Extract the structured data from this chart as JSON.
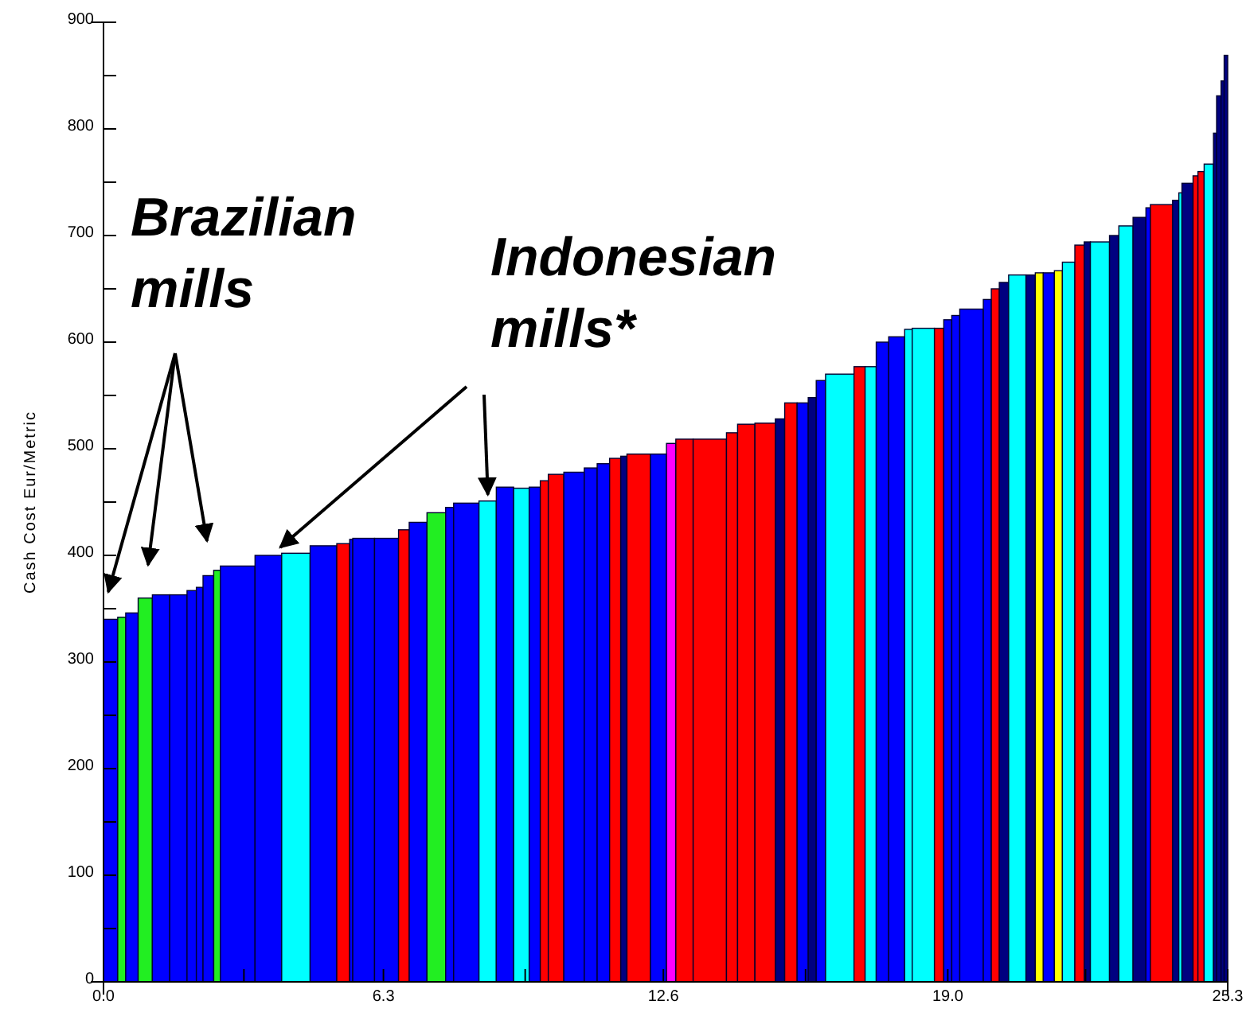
{
  "chart_data": {
    "type": "histogram",
    "ylabel": "Cash Cost Eur/Metric",
    "bins": [
      0.0,
      0.32,
      0.5,
      0.78,
      1.1,
      1.49,
      1.88,
      2.09,
      2.24,
      2.48,
      2.63,
      3.41,
      4.01,
      4.65,
      5.25,
      5.54,
      5.61,
      6.1,
      6.64,
      6.88,
      7.28,
      7.7,
      7.88,
      8.45,
      8.84,
      9.23,
      9.58,
      9.83,
      10.01,
      10.36,
      10.82,
      11.11,
      11.39,
      11.64,
      11.78,
      12.31,
      12.67,
      12.88,
      13.27,
      14.02,
      14.27,
      14.66,
      15.12,
      15.33,
      15.61,
      15.86,
      16.04,
      16.25,
      16.89,
      17.14,
      17.39,
      17.67,
      18.03,
      18.2,
      18.7,
      18.91,
      19.09,
      19.27,
      19.8,
      19.98,
      20.16,
      20.37,
      20.76,
      20.97,
      21.15,
      21.4,
      21.58,
      21.86,
      22.07,
      22.21,
      22.64,
      22.85,
      23.17,
      23.46,
      23.56,
      24.06,
      24.2,
      24.27,
      24.52,
      24.63,
      24.77,
      24.98,
      25.05,
      25.15,
      25.22,
      25.3
    ],
    "values": [
      340,
      342,
      346,
      360,
      363,
      363,
      367,
      370,
      381,
      386,
      390,
      400,
      402,
      409,
      411,
      415,
      416,
      416,
      424,
      431,
      440,
      445,
      449,
      451,
      464,
      463,
      464,
      470,
      476,
      478,
      482,
      486,
      491,
      493,
      495,
      495,
      505,
      509,
      509,
      515,
      523,
      524,
      528,
      543,
      543,
      548,
      564,
      570,
      577,
      577,
      600,
      605,
      612,
      613,
      613,
      621,
      625,
      631,
      640,
      650,
      656,
      663,
      663,
      665,
      665,
      667,
      675,
      691,
      694,
      694,
      700,
      709,
      717,
      726,
      729,
      733,
      740,
      749,
      756,
      760,
      767,
      796,
      831,
      845,
      869
    ],
    "colors": [
      "#0000ff",
      "#22ee22",
      "#0000ff",
      "#22ee22",
      "#0000ff",
      "#0000ff",
      "#0000ff",
      "#0000ff",
      "#0000ff",
      "#22ee22",
      "#0000ff",
      "#0000ff",
      "#00ffff",
      "#0000ff",
      "#ff0000",
      "#0000ff",
      "#0000ff",
      "#0000ff",
      "#ff0000",
      "#0000ff",
      "#22ee22",
      "#0000ff",
      "#0000ff",
      "#00ffff",
      "#0000ff",
      "#00ffff",
      "#0000ff",
      "#ff0000",
      "#ff0000",
      "#0000ff",
      "#0000ff",
      "#0000ff",
      "#ff0000",
      "#000080",
      "#ff0000",
      "#0000ff",
      "#ff00ff",
      "#ff0000",
      "#ff0000",
      "#ff0000",
      "#ff0000",
      "#ff0000",
      "#000080",
      "#ff0000",
      "#0000ff",
      "#000080",
      "#0000ff",
      "#00ffff",
      "#ff0000",
      "#00ffff",
      "#0000ff",
      "#0000ff",
      "#00ffff",
      "#00ffff",
      "#ff0000",
      "#0000ff",
      "#0000ff",
      "#0000ff",
      "#0000ff",
      "#ff0000",
      "#000080",
      "#00ffff",
      "#000080",
      "#ffff00",
      "#0000ff",
      "#ffff00",
      "#00ffff",
      "#ff0000",
      "#000080",
      "#00ffff",
      "#000080",
      "#00ffff",
      "#000080",
      "#0000ff",
      "#ff0000",
      "#000080",
      "#00ffff",
      "#000080",
      "#ff0000",
      "#ff0000",
      "#00ffff",
      "#000080",
      "#000080",
      "#000080",
      "#000080"
    ],
    "xlim": [
      0,
      25.3
    ],
    "xticks": [
      {
        "value": 0,
        "label": "0.0"
      },
      {
        "value": 3.16,
        "label": null
      },
      {
        "value": 6.3,
        "label": "6.3"
      },
      {
        "value": 9.49,
        "label": null
      },
      {
        "value": 12.6,
        "label": "12.6"
      },
      {
        "value": 15.8,
        "label": null
      },
      {
        "value": 19.0,
        "label": "19.0"
      },
      {
        "value": 22.1,
        "label": null
      },
      {
        "value": 25.3,
        "label": "25.3"
      }
    ],
    "ylim": [
      0,
      900
    ],
    "yticks": [
      0,
      {
        "value": 50,
        "label": null
      },
      100,
      {
        "value": 150,
        "label": null
      },
      200,
      {
        "value": 250,
        "label": null
      },
      300,
      {
        "value": 350,
        "label": null
      },
      400,
      {
        "value": 450,
        "label": null
      },
      500,
      {
        "value": 550,
        "label": null
      },
      600,
      {
        "value": 650,
        "label": null
      },
      700,
      {
        "value": 750,
        "label": null
      },
      800,
      {
        "value": 850,
        "label": null
      },
      900
    ],
    "annotations": [
      "Brazilian mills",
      {
        "text": "Indonesian mills*",
        "x": 8.65,
        "y": 451
      }
    ]
  }
}
